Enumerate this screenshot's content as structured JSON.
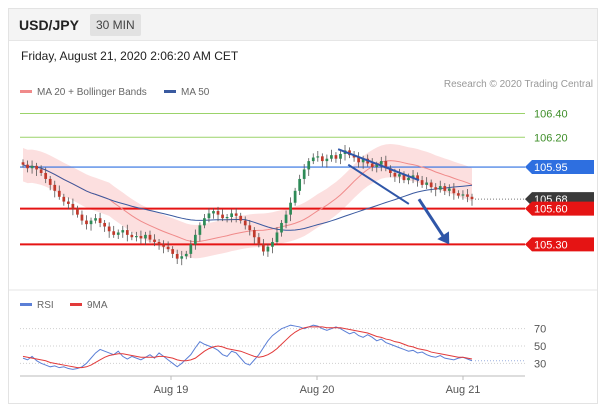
{
  "header": {
    "symbol": "USD/JPY",
    "timeframe": "30 MIN"
  },
  "datetime": "Friday, August 21, 2020 2:06:20 AM CET",
  "legend": {
    "ma_bb_label": "MA 20 + Bollinger Bands",
    "ma50_label": "MA 50",
    "rsi_label": "RSI",
    "ma9_label": "9MA"
  },
  "credit": "Research © 2020 Trading Central",
  "colors": {
    "ma20": "#f08a8a",
    "ma50": "#3a5aa0",
    "bands": "#fcd9d9",
    "rsi": "#5b7fd6",
    "ma9": "#e23a3a",
    "level_blue": "#2e6fe0",
    "level_red": "#e51414",
    "current_price": "#3a3a3a",
    "level_green": "#9bd36a",
    "candle_up": "#2e8b57",
    "candle_down": "#c0392b",
    "channel": "#2f56a8"
  },
  "chart_data": [
    {
      "type": "candlestick",
      "name": "price",
      "x_labels": [
        "Aug 19",
        "Aug 20",
        "Aug 21"
      ],
      "ylim": [
        104.95,
        106.48
      ],
      "price_levels": [
        {
          "value": 106.4,
          "label": "106.40",
          "role": "target"
        },
        {
          "value": 106.2,
          "label": "106.20",
          "role": "target"
        },
        {
          "value": 105.95,
          "label": "105.95",
          "role": "pivot"
        },
        {
          "value": 105.68,
          "label": "105.68",
          "role": "current"
        },
        {
          "value": 105.6,
          "label": "105.60",
          "role": "support"
        },
        {
          "value": 105.3,
          "label": "105.30",
          "role": "support"
        }
      ],
      "close": [
        105.97,
        105.94,
        105.96,
        105.93,
        105.9,
        105.85,
        105.8,
        105.75,
        105.7,
        105.66,
        105.64,
        105.6,
        105.55,
        105.5,
        105.47,
        105.5,
        105.52,
        105.48,
        105.45,
        105.41,
        105.38,
        105.4,
        105.42,
        105.38,
        105.36,
        105.37,
        105.35,
        105.38,
        105.34,
        105.32,
        105.3,
        105.28,
        105.26,
        105.22,
        105.18,
        105.2,
        105.22,
        105.3,
        105.38,
        105.46,
        105.52,
        105.56,
        105.58,
        105.55,
        105.52,
        105.53,
        105.56,
        105.54,
        105.5,
        105.46,
        105.42,
        105.36,
        105.3,
        105.24,
        105.28,
        105.32,
        105.4,
        105.48,
        105.55,
        105.65,
        105.75,
        105.85,
        105.93,
        106.0,
        106.03,
        106.04,
        106.0,
        106.02,
        106.05,
        106.02,
        106.06,
        106.09,
        106.05,
        106.03,
        105.99,
        106.02,
        105.98,
        105.95,
        105.97,
        106.0,
        105.94,
        105.9,
        105.87,
        105.89,
        105.84,
        105.86,
        105.88,
        105.84,
        105.8,
        105.82,
        105.78,
        105.76,
        105.79,
        105.75,
        105.77,
        105.73,
        105.71,
        105.72,
        105.7,
        105.68
      ],
      "channel_upper": [
        [
          106.1,
          0.63
        ],
        [
          105.84,
          0.79
        ]
      ],
      "channel_lower": [
        [
          105.97,
          0.65
        ],
        [
          105.64,
          0.77
        ]
      ],
      "forecast_arrow": [
        [
          105.68,
          0.79
        ],
        [
          105.3,
          0.85
        ]
      ],
      "bands_note": "MA20 envelope ±0.14",
      "overlays": [
        "MA 20 + Bollinger Bands",
        "MA 50"
      ]
    },
    {
      "type": "line",
      "name": "RSI",
      "y_ticks": [
        "70",
        "50",
        "30"
      ],
      "ylim": [
        20,
        80
      ],
      "series": [
        {
          "name": "RSI",
          "values": [
            36,
            34,
            38,
            33,
            30,
            28,
            26,
            27,
            25,
            26,
            24,
            23,
            24,
            26,
            30,
            36,
            42,
            46,
            44,
            42,
            40,
            44,
            38,
            35,
            38,
            36,
            34,
            37,
            40,
            36,
            42,
            38,
            34,
            30,
            26,
            30,
            35,
            40,
            48,
            55,
            52,
            50,
            48,
            45,
            40,
            38,
            44,
            42,
            36,
            30,
            28,
            34,
            40,
            48,
            56,
            62,
            66,
            70,
            72,
            74,
            73,
            72,
            70,
            72,
            74,
            73,
            70,
            68,
            70,
            72,
            70,
            67,
            64,
            66,
            62,
            60,
            63,
            60,
            56,
            58,
            54,
            52,
            50,
            48,
            46,
            44,
            45,
            42,
            43,
            40,
            38,
            37,
            39,
            36,
            35,
            34,
            36,
            37,
            35,
            33
          ]
        },
        {
          "name": "9MA",
          "values": [
            38,
            37,
            36,
            35,
            34,
            33,
            31,
            30,
            29,
            28,
            27,
            26,
            25,
            25,
            26,
            28,
            31,
            34,
            37,
            39,
            40,
            41,
            41,
            40,
            39,
            38,
            37,
            37,
            37,
            37,
            38,
            38,
            37,
            36,
            34,
            33,
            33,
            34,
            36,
            40,
            44,
            47,
            49,
            50,
            49,
            47,
            46,
            45,
            44,
            42,
            40,
            38,
            37,
            38,
            40,
            43,
            47,
            52,
            57,
            62,
            66,
            69,
            71,
            72,
            72,
            72,
            72,
            71,
            71,
            71,
            71,
            70,
            69,
            68,
            67,
            66,
            65,
            63,
            61,
            60,
            58,
            57,
            55,
            54,
            52,
            50,
            49,
            47,
            46,
            45,
            43,
            42,
            41,
            40,
            39,
            38,
            37,
            37,
            36,
            35
          ]
        }
      ]
    }
  ]
}
